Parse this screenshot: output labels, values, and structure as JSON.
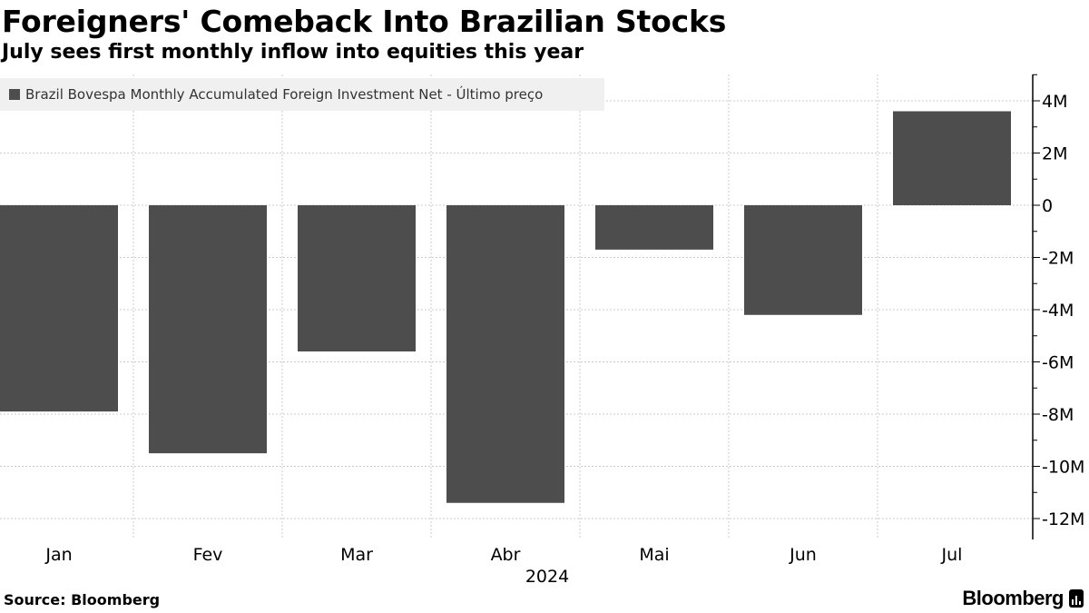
{
  "title": "Foreigners' Comeback Into Brazilian Stocks",
  "subtitle": "July sees first monthly inflow into equities this year",
  "legend_label": "Brazil Bovespa Monthly Accumulated Foreign Investment Net - Último preço",
  "source": "Source: Bloomberg",
  "brand": "Bloomberg",
  "colors": {
    "bar": "#4d4d4d",
    "grid": "#cccccc",
    "legend_bg": "#f0f0f0"
  },
  "chart_data": {
    "type": "bar",
    "title": "Foreigners' Comeback Into Brazilian Stocks",
    "subtitle": "July sees first monthly inflow into equities this year",
    "categories": [
      "Jan",
      "Fev",
      "Mar",
      "Abr",
      "Mai",
      "Jun",
      "Jul"
    ],
    "series": [
      {
        "name": "Brazil Bovespa Monthly Accumulated Foreign Investment Net - Último preço",
        "values": [
          -7.9,
          -9.5,
          -5.6,
          -11.4,
          -1.7,
          -4.2,
          3.6
        ]
      }
    ],
    "xlabel": "2024",
    "ylabel": "",
    "ylim": [
      -12.8,
      5
    ],
    "yticks": [
      4,
      2,
      0,
      -2,
      -4,
      -6,
      -8,
      -10,
      -12
    ],
    "ytick_labels": [
      "4M",
      "2M",
      "0",
      "-2M",
      "-4M",
      "-6M",
      "-8M",
      "-10M",
      "-12M"
    ],
    "y_axis_position": "right",
    "grid": true
  }
}
